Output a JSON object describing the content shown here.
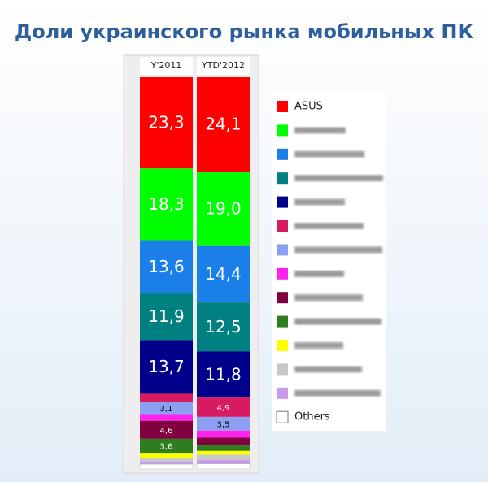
{
  "chart_data": {
    "type": "stacked-bar",
    "title": "Доли украинского рынка мобильных ПК",
    "categories": [
      "Y'2011",
      "YTD'2012"
    ],
    "ylim": [
      0,
      100
    ],
    "series": [
      {
        "name": "ASUS",
        "color": "#ff0000",
        "values": [
          23.3,
          24.1
        ],
        "value_labels": [
          "23,3",
          "24,1"
        ]
      },
      {
        "name": null,
        "color": "#00ff00",
        "values": [
          18.3,
          19.0
        ],
        "value_labels": [
          "18,3",
          "19,0"
        ]
      },
      {
        "name": null,
        "color": "#1a7fe8",
        "values": [
          13.6,
          14.4
        ],
        "value_labels": [
          "13,6",
          "14,4"
        ]
      },
      {
        "name": null,
        "color": "#008080",
        "values": [
          11.9,
          12.5
        ],
        "value_labels": [
          "11,9",
          "12,5"
        ]
      },
      {
        "name": null,
        "color": "#00008b",
        "values": [
          13.7,
          11.8
        ],
        "value_labels": [
          "13,7",
          "11,8"
        ]
      },
      {
        "name": null,
        "color": "#d81b60",
        "values": [
          2.1,
          4.9
        ],
        "value_labels": [
          null,
          "4,9"
        ]
      },
      {
        "name": null,
        "color": "#8c9ff0",
        "values": [
          3.1,
          3.5
        ],
        "value_labels": [
          "3,1",
          "3,5"
        ]
      },
      {
        "name": null,
        "color": "#ff22ee",
        "values": [
          1.7,
          1.8
        ],
        "value_labels": [
          null,
          null
        ]
      },
      {
        "name": null,
        "color": "#800040",
        "values": [
          4.6,
          2.0
        ],
        "value_labels": [
          "4,6",
          null
        ]
      },
      {
        "name": null,
        "color": "#2e7d1e",
        "values": [
          3.6,
          1.4
        ],
        "value_labels": [
          "3,6",
          null
        ]
      },
      {
        "name": null,
        "color": "#ffff00",
        "values": [
          1.4,
          1.0
        ],
        "value_labels": [
          null,
          null
        ]
      },
      {
        "name": null,
        "color": "#c8c8c8",
        "values": [
          1.0,
          1.3
        ],
        "value_labels": [
          null,
          null
        ]
      },
      {
        "name": null,
        "color": "#c79be8",
        "values": [
          0.5,
          1.0
        ],
        "value_labels": [
          null,
          null
        ]
      },
      {
        "name": "Others",
        "color": "#ffffff",
        "values": [
          1.2,
          1.3
        ],
        "value_labels": [
          null,
          null
        ]
      }
    ]
  }
}
